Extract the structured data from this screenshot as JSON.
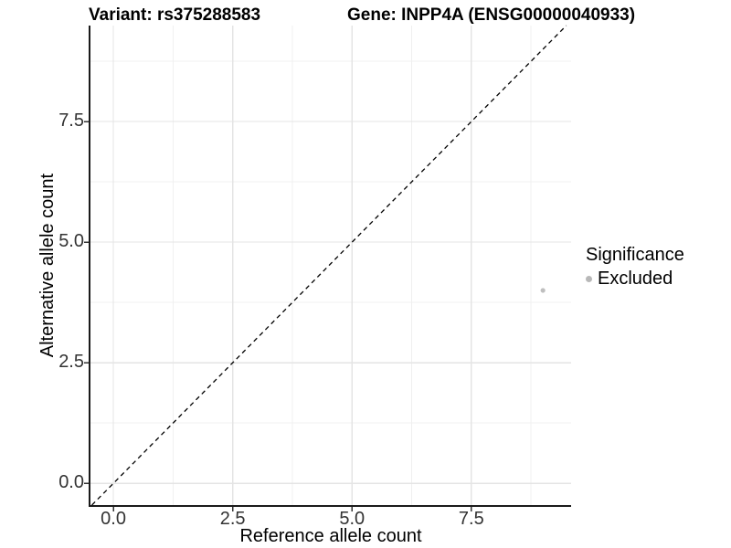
{
  "figure": {
    "background": "#ffffff"
  },
  "title": {
    "variant_label": "Variant: rs375288583",
    "gene_label": "Gene: INPP4A (ENSG00000040933)"
  },
  "axes": {
    "x_label": "Reference allele count",
    "y_label": "Alternative allele count"
  },
  "legend": {
    "title": "Significance",
    "items": [
      {
        "label": "Excluded",
        "marker": "circle",
        "color": "#b8b8b8"
      }
    ]
  },
  "chart_data": {
    "type": "scatter",
    "title": "Variant: rs375288583   Gene: INPP4A (ENSG00000040933)",
    "xlabel": "Reference allele count",
    "ylabel": "Alternative allele count",
    "xlim": [
      -0.48,
      9.59
    ],
    "ylim": [
      -0.45,
      9.49
    ],
    "x_ticks": [
      0,
      2.5,
      5,
      7.5
    ],
    "x_tick_labels": [
      "0.0",
      "2.5",
      "5.0",
      "7.5"
    ],
    "y_ticks": [
      0,
      2.5,
      5,
      7.5
    ],
    "y_tick_labels": [
      "0.0",
      "2.5",
      "5.0",
      "7.5"
    ],
    "x_minor_ticks": [
      1.25,
      3.75,
      6.25,
      8.75
    ],
    "y_minor_ticks": [
      1.25,
      3.75,
      6.25,
      8.75
    ],
    "series": [
      {
        "name": "Excluded",
        "color": "#bfbfbf",
        "points": [
          {
            "x": 9,
            "y": 4
          }
        ]
      }
    ],
    "reference_line": {
      "kind": "identity",
      "slope": 1,
      "intercept": 0,
      "style": "dashed",
      "color": "#000000"
    },
    "grid": {
      "major": true,
      "minor": true,
      "major_color": "#e4e4e4",
      "minor_color": "#f0f0f0"
    },
    "legend_position": "right-middle"
  },
  "style_colors": {
    "axis_line": "#1a1a1a",
    "tick_mark": "#333333",
    "tick_label": "#333333",
    "text": "#000000"
  }
}
